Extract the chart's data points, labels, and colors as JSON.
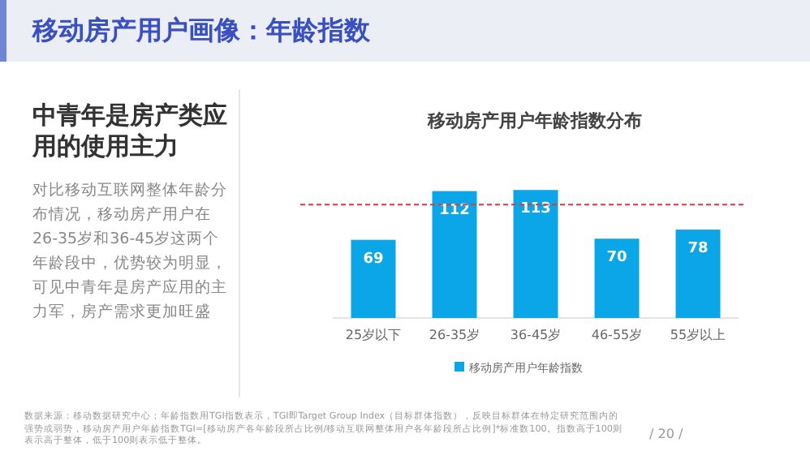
{
  "chart_data": {
    "type": "bar",
    "title": "移动房产用户画像：年龄指数",
    "subtitle": "移动房产用户年龄指数分布",
    "categories": [
      "25岁以下",
      "26-35岁",
      "36-45岁",
      "46-55岁",
      "55岁以上"
    ],
    "series": [
      {
        "name": "移动房产用户年龄指数",
        "color": "#0aa6e8",
        "values": [
          69,
          112,
          113,
          70,
          78
        ]
      }
    ],
    "data_labels": true,
    "legend": "bottom",
    "grid": false,
    "ref_lines": [
      {
        "axis": "y",
        "value": 100,
        "color": "#e8343c",
        "line_style": "dashed"
      }
    ],
    "annotations": [
      "中青年是房产类应用的使用主力",
      "对比移动互联网整体年龄分布情况，移动房产用户在26-35岁和36-45岁这两个年龄段中，优势较为明显，可见中青年是房产应用的主力军，房产需求更加旺盛",
      "数据来源：移动数据研究中心；年龄指数用TGI指数表示，TGI即Target Group Index（目标群体指数），反映目标群体在特定研究范围内的强势或弱势，移动房产用户年龄指数TGI=[移动房产各年龄段所占比例/移动互联网整体用户各年龄段所占比例]*标准数100。指数高于100则表示高于整体，低于100则表示低于整体。",
      "/ 20 /"
    ]
  }
}
